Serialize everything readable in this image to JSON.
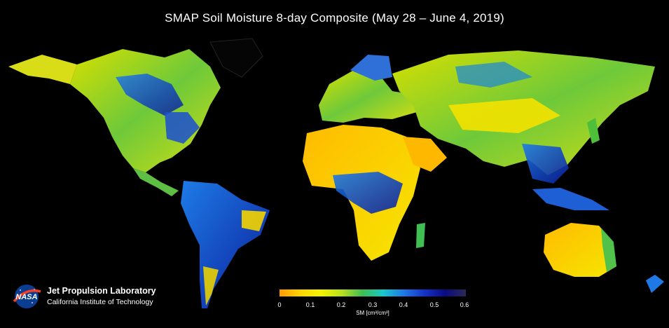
{
  "title": "SMAP Soil Moisture 8-day Composite (May 28 – June 4, 2019)",
  "legend": {
    "label": "SM [cm³/cm³]",
    "ticks": [
      "0",
      "0.1",
      "0.2",
      "0.3",
      "0.4",
      "0.5",
      "0.6"
    ],
    "colors": [
      "#ff9a00",
      "#ffd400",
      "#f3f300",
      "#b9e01c",
      "#3fbf52",
      "#17c9c9",
      "#1e78e6",
      "#1432c8",
      "#0a0a82",
      "#2a2a55"
    ]
  },
  "organization": {
    "logo_text": "NASA",
    "name": "Jet Propulsion Laboratory",
    "subtitle": "California Institute of Technology"
  }
}
